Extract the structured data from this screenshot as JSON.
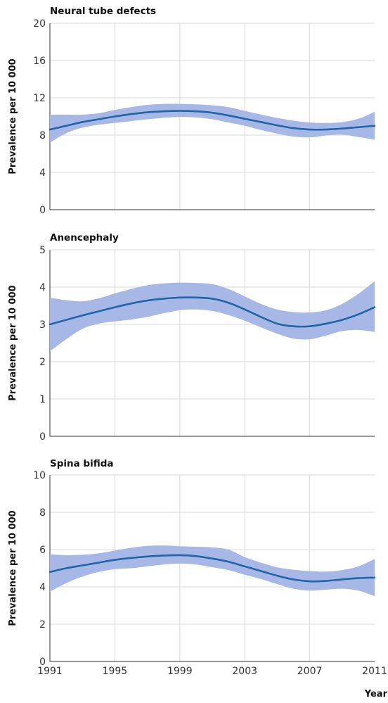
{
  "chart_data": [
    {
      "type": "line",
      "title": "Neural tube defects",
      "ylabel": "Prevalence per 10 000",
      "xlabel": "",
      "xlim": [
        1991,
        2011
      ],
      "ylim": [
        0,
        20
      ],
      "yticks": [
        0,
        4,
        8,
        12,
        16,
        20
      ],
      "xticks": [
        1991,
        1995,
        1999,
        2003,
        2007,
        2011
      ],
      "grid": true,
      "series": [
        {
          "x": [
            1991,
            1992,
            1993,
            1994,
            1995,
            1996,
            1997,
            1998,
            1999,
            2000,
            2001,
            2002,
            2003,
            2004,
            2005,
            2006,
            2007,
            2008,
            2009,
            2010,
            2011
          ],
          "values": [
            8.6,
            9.0,
            9.4,
            9.7,
            10.0,
            10.25,
            10.45,
            10.55,
            10.6,
            10.55,
            10.4,
            10.1,
            9.75,
            9.4,
            9.05,
            8.75,
            8.6,
            8.6,
            8.7,
            8.85,
            9.0
          ],
          "lower": [
            7.2,
            8.2,
            8.8,
            9.1,
            9.3,
            9.5,
            9.7,
            9.85,
            9.95,
            9.9,
            9.7,
            9.35,
            9.0,
            8.55,
            8.15,
            7.85,
            7.75,
            7.95,
            8.05,
            7.8,
            7.5
          ],
          "upper": [
            10.2,
            10.2,
            10.2,
            10.35,
            10.7,
            11.0,
            11.25,
            11.35,
            11.35,
            11.3,
            11.2,
            11.0,
            10.6,
            10.2,
            9.85,
            9.55,
            9.35,
            9.3,
            9.4,
            9.75,
            10.5
          ]
        }
      ]
    },
    {
      "type": "line",
      "title": "Anencephaly",
      "ylabel": "Prevalence per 10 000",
      "xlabel": "",
      "xlim": [
        1991,
        2011
      ],
      "ylim": [
        0,
        5
      ],
      "yticks": [
        0,
        1,
        2,
        3,
        4,
        5
      ],
      "xticks": [
        1991,
        1995,
        1999,
        2003,
        2007,
        2011
      ],
      "grid": true,
      "series": [
        {
          "x": [
            1991,
            1992,
            1993,
            1994,
            1995,
            1996,
            1997,
            1998,
            1999,
            2000,
            2001,
            2002,
            2003,
            2004,
            2005,
            2006,
            2007,
            2008,
            2009,
            2010,
            2011
          ],
          "values": [
            3.0,
            3.12,
            3.24,
            3.35,
            3.46,
            3.56,
            3.64,
            3.69,
            3.72,
            3.72,
            3.69,
            3.58,
            3.4,
            3.2,
            3.02,
            2.95,
            2.95,
            3.02,
            3.12,
            3.27,
            3.46
          ],
          "lower": [
            2.28,
            2.6,
            2.88,
            3.02,
            3.08,
            3.13,
            3.2,
            3.3,
            3.38,
            3.4,
            3.36,
            3.25,
            3.1,
            2.92,
            2.75,
            2.62,
            2.6,
            2.7,
            2.82,
            2.85,
            2.8
          ],
          "upper": [
            3.72,
            3.65,
            3.62,
            3.7,
            3.83,
            3.95,
            4.05,
            4.1,
            4.12,
            4.11,
            4.08,
            3.95,
            3.75,
            3.55,
            3.4,
            3.33,
            3.32,
            3.38,
            3.55,
            3.82,
            4.16
          ]
        }
      ]
    },
    {
      "type": "line",
      "title": "Spina bifida",
      "ylabel": "Prevalence per 10 000",
      "xlabel": "Year",
      "xlim": [
        1991,
        2011
      ],
      "ylim": [
        0,
        10
      ],
      "yticks": [
        0,
        2,
        4,
        6,
        8,
        10
      ],
      "xticks": [
        1991,
        1995,
        1999,
        2003,
        2007,
        2011
      ],
      "grid": true,
      "series": [
        {
          "x": [
            1991,
            1992,
            1993,
            1994,
            1995,
            1996,
            1997,
            1998,
            1999,
            2000,
            2001,
            2002,
            2003,
            2004,
            2005,
            2006,
            2007,
            2008,
            2009,
            2010,
            2011
          ],
          "values": [
            4.8,
            5.0,
            5.15,
            5.3,
            5.45,
            5.55,
            5.63,
            5.68,
            5.7,
            5.65,
            5.52,
            5.35,
            5.1,
            4.85,
            4.6,
            4.4,
            4.3,
            4.32,
            4.4,
            4.47,
            4.5
          ],
          "lower": [
            3.75,
            4.2,
            4.55,
            4.8,
            4.95,
            5.0,
            5.1,
            5.2,
            5.25,
            5.2,
            5.05,
            4.9,
            4.65,
            4.42,
            4.15,
            3.9,
            3.8,
            3.85,
            3.9,
            3.8,
            3.5
          ],
          "upper": [
            5.75,
            5.7,
            5.72,
            5.8,
            5.95,
            6.1,
            6.2,
            6.22,
            6.18,
            6.15,
            6.12,
            6.0,
            5.6,
            5.3,
            5.05,
            4.92,
            4.85,
            4.82,
            4.9,
            5.1,
            5.5
          ]
        }
      ]
    }
  ],
  "colors": {
    "line": "#1f65a8",
    "band": "#a8b8e6",
    "grid": "#d9d9d9",
    "axis": "#333333"
  }
}
